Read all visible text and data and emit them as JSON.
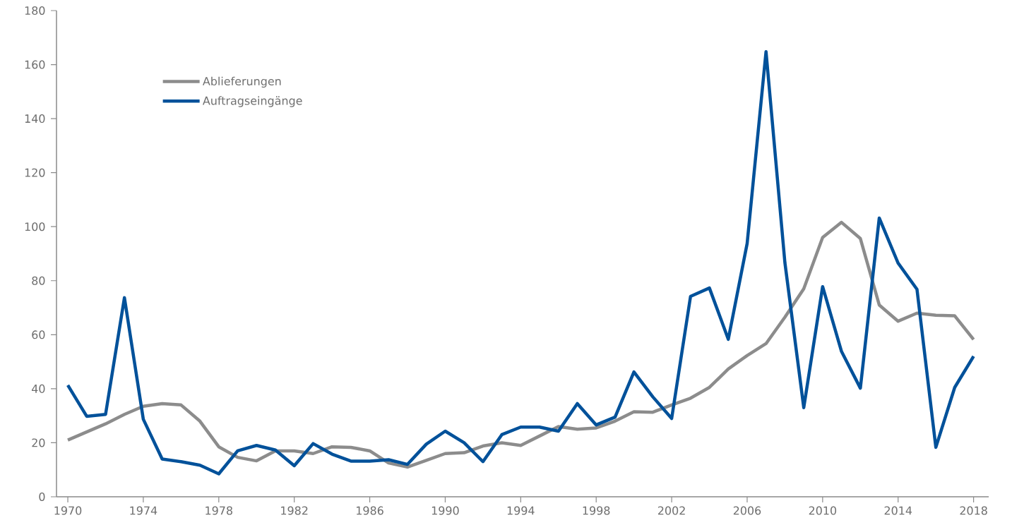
{
  "chart_data": {
    "type": "line",
    "x": [
      1970,
      1971,
      1972,
      1973,
      1974,
      1975,
      1976,
      1977,
      1978,
      1979,
      1980,
      1981,
      1982,
      1983,
      1984,
      1985,
      1986,
      1987,
      1988,
      1989,
      1990,
      1991,
      1992,
      1993,
      1994,
      1995,
      1996,
      1997,
      1998,
      1999,
      2000,
      2001,
      2002,
      2003,
      2004,
      2005,
      2006,
      2007,
      2008,
      2009,
      2010,
      2011,
      2012,
      2013,
      2014,
      2015,
      2016,
      2017,
      2018
    ],
    "series": [
      {
        "name": "Ablieferungen",
        "color": "#8c8c8c",
        "values": [
          21,
          24,
          27,
          30.5,
          33.5,
          34.5,
          34,
          28,
          18.5,
          14.6,
          13.3,
          17,
          17,
          16,
          18.5,
          18.3,
          17,
          12.5,
          11,
          13.5,
          16,
          16.3,
          18.8,
          20,
          19,
          22.5,
          26,
          25,
          25.5,
          28,
          31.5,
          31.3,
          34,
          36.5,
          40.5,
          47.3,
          52.3,
          56.7,
          66.5,
          77,
          96,
          101.6,
          95.6,
          71,
          65,
          68,
          67.2,
          67,
          58.2
        ]
      },
      {
        "name": "Auftragseingänge",
        "color": "#00519a",
        "values": [
          41.3,
          29.8,
          30.5,
          73.7,
          28.7,
          14,
          13,
          11.7,
          8.5,
          17,
          19,
          17.3,
          11.5,
          19.7,
          15.8,
          13.2,
          13.2,
          13.7,
          12,
          19.5,
          24.3,
          20,
          13,
          23,
          25.8,
          25.8,
          24.3,
          34.5,
          26.6,
          29.5,
          46.2,
          37,
          29,
          74.2,
          77.3,
          58.3,
          93.8,
          164.8,
          86.7,
          33,
          77.8,
          53.8,
          40.2,
          103.2,
          86.5,
          76.8,
          18.3,
          40.5,
          52
        ]
      }
    ],
    "xlim": [
      1969.4,
      2018.8
    ],
    "ylim": [
      0,
      180
    ],
    "xticks": [
      1970,
      1974,
      1978,
      1982,
      1986,
      1990,
      1994,
      1998,
      2002,
      2006,
      2010,
      2014,
      2018
    ],
    "yticks": [
      0,
      20,
      40,
      60,
      80,
      100,
      120,
      140,
      160,
      180
    ],
    "grid": false,
    "legend": "top left",
    "marker": "none",
    "line_style": "solid"
  }
}
